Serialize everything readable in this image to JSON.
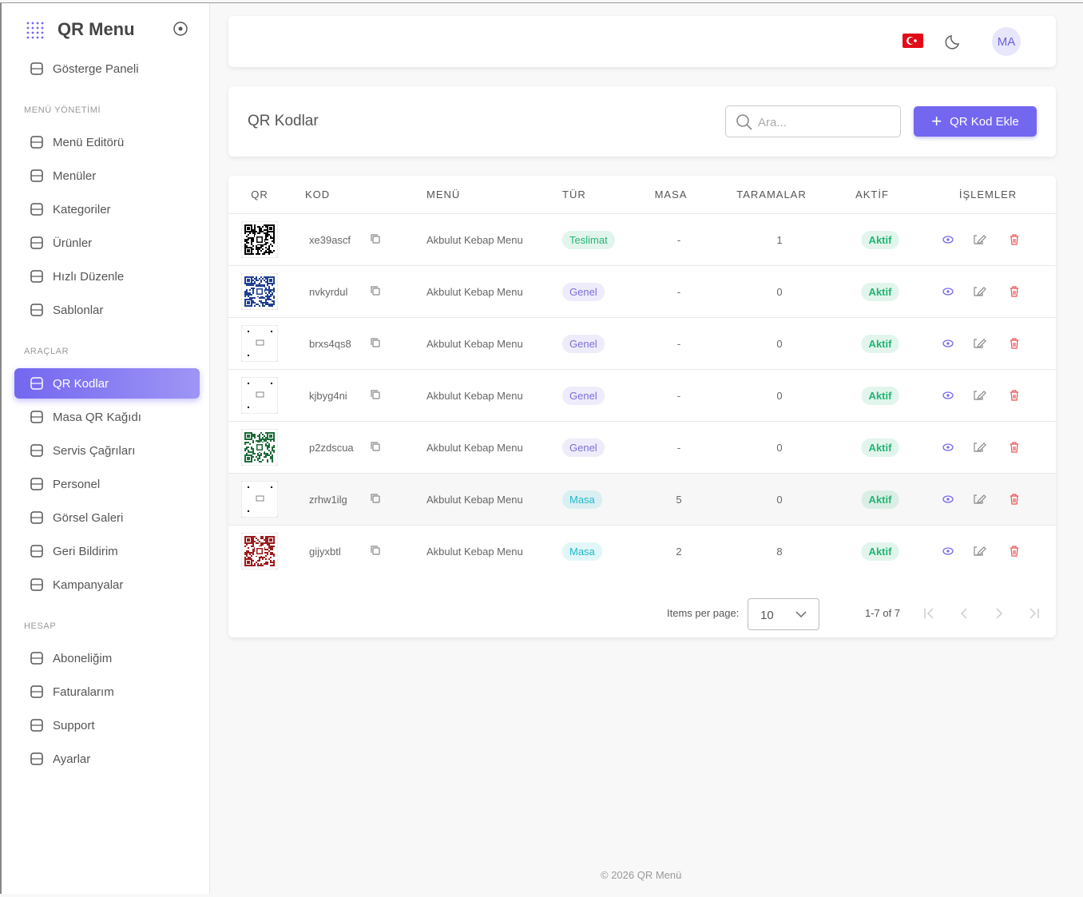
{
  "sidebar": {
    "brand": "QR Menu",
    "home": {
      "label": "Gösterge Paneli"
    },
    "sections": [
      {
        "title": "MENÜ YÖNETİMİ",
        "items": [
          {
            "label": "Menü Editörü"
          },
          {
            "label": "Menüler"
          },
          {
            "label": "Kategoriler"
          },
          {
            "label": "Ürünler"
          },
          {
            "label": "Hızlı Düzenle"
          },
          {
            "label": "Sablonlar"
          }
        ]
      },
      {
        "title": "ARAÇLAR",
        "items": [
          {
            "label": "QR Kodlar",
            "active": true
          },
          {
            "label": "Masa QR Kağıdı"
          },
          {
            "label": "Servis Çağrıları"
          },
          {
            "label": "Personel"
          },
          {
            "label": "Görsel Galeri"
          },
          {
            "label": "Geri Bildirim"
          },
          {
            "label": "Kampanyalar"
          }
        ]
      },
      {
        "title": "HESAP",
        "items": [
          {
            "label": "Aboneliğim"
          },
          {
            "label": "Faturalarım"
          },
          {
            "label": "Support"
          },
          {
            "label": "Ayarlar"
          }
        ]
      }
    ]
  },
  "header": {
    "avatar": "MA"
  },
  "page": {
    "title": "QR Kodlar",
    "search_placeholder": "Ara...",
    "add_button": "QR Kod Ekle"
  },
  "table": {
    "columns": [
      "QR",
      "KOD",
      "MENÜ",
      "TÜR",
      "MASA",
      "TARAMALAR",
      "AKTİF",
      "İŞLEMLER"
    ],
    "rows": [
      {
        "qr_color": "#000000",
        "code": "xe39ascf",
        "menu": "Akbulut Kebap Menu",
        "type": "Teslimat",
        "type_color": "#22b573",
        "table": "-",
        "scans": 1,
        "status": "Aktif"
      },
      {
        "qr_color": "#1f3f8f",
        "code": "nvkyrdul",
        "menu": "Akbulut Kebap Menu",
        "type": "Genel",
        "type_color": "#7c6fdc",
        "table": "-",
        "scans": 0,
        "status": "Aktif"
      },
      {
        "qr_color": null,
        "code": "brxs4qs8",
        "menu": "Akbulut Kebap Menu",
        "type": "Genel",
        "type_color": "#7c6fdc",
        "table": "-",
        "scans": 0,
        "status": "Aktif"
      },
      {
        "qr_color": null,
        "code": "kjbyg4ni",
        "menu": "Akbulut Kebap Menu",
        "type": "Genel",
        "type_color": "#7c6fdc",
        "table": "-",
        "scans": 0,
        "status": "Aktif"
      },
      {
        "qr_color": "#1e6b3a",
        "code": "p2zdscua",
        "menu": "Akbulut Kebap Menu",
        "type": "Genel",
        "type_color": "#7c6fdc",
        "table": "-",
        "scans": 0,
        "status": "Aktif"
      },
      {
        "qr_color": null,
        "code": "zrhw1ilg",
        "menu": "Akbulut Kebap Menu",
        "type": "Masa",
        "type_color": "#1fb8cc",
        "table": 5,
        "scans": 0,
        "status": "Aktif"
      },
      {
        "qr_color": "#9b1c1c",
        "code": "gijyxbtl",
        "menu": "Akbulut Kebap Menu",
        "type": "Masa",
        "type_color": "#1fb8cc",
        "table": 2,
        "scans": 8,
        "status": "Aktif"
      }
    ]
  },
  "pagination": {
    "items_per_page_label": "Items per page:",
    "page_size": 10,
    "range": "1-7 of 7"
  },
  "footer": "© 2026 QR Menü"
}
